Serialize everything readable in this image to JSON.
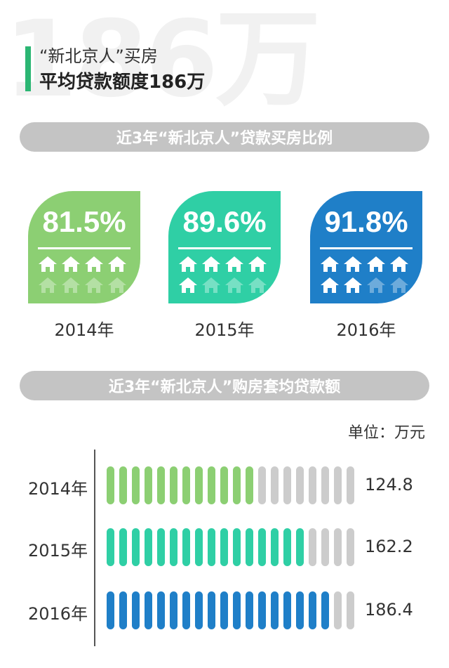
{
  "header": {
    "watermark": "186万",
    "line1": "“新北京人”买房",
    "line2": "平均贷款额度186万",
    "accent_color": "#2bb673"
  },
  "section1": {
    "title": "近3年“新北京人”贷款买房比例"
  },
  "section2": {
    "title": "近3年“新北京人”购房套均贷款额",
    "unit": "单位：万元"
  },
  "chart_data": [
    {
      "type": "bar",
      "title": "近3年“新北京人”贷款买房比例",
      "categories": [
        "2014年",
        "2015年",
        "2016年"
      ],
      "values": [
        81.5,
        89.6,
        91.8
      ],
      "labels": [
        "81.5%",
        "89.6%",
        "91.8%"
      ],
      "colors": [
        "#8ccf73",
        "#2fcfa5",
        "#1f7fc8"
      ],
      "icon": "house-icon",
      "icons_total": 8,
      "filled_icons": [
        4,
        5,
        6
      ],
      "ylim": [
        0,
        100
      ]
    },
    {
      "type": "bar",
      "title": "近3年“新北京人”购房套均贷款额",
      "unit": "单位：万元",
      "categories": [
        "2014年",
        "2015年",
        "2016年"
      ],
      "values": [
        124.8,
        162.2,
        186.4
      ],
      "labels": [
        "124.8",
        "162.2",
        "186.4"
      ],
      "colors": [
        "#8ccf73",
        "#2fcfa5",
        "#1f7fc8"
      ],
      "segments_total": 20,
      "filled_segments": [
        12,
        16,
        18
      ],
      "empty_color": "#cccccc"
    }
  ]
}
